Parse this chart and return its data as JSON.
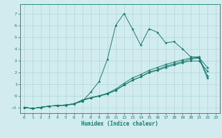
{
  "background_color": "#d0ecee",
  "grid_color": "#b8d8da",
  "line_color": "#1a7a6e",
  "xlabel": "Humidex (Indice chaleur)",
  "xlim": [
    -0.5,
    23.5
  ],
  "ylim": [
    -1.5,
    7.8
  ],
  "yticks": [
    -1,
    0,
    1,
    2,
    3,
    4,
    5,
    6,
    7
  ],
  "xticks": [
    0,
    1,
    2,
    3,
    4,
    5,
    6,
    7,
    8,
    9,
    10,
    11,
    12,
    13,
    14,
    15,
    16,
    17,
    18,
    19,
    20,
    21,
    22,
    23
  ],
  "lines": [
    {
      "x": [
        0,
        1,
        2,
        3,
        4,
        5,
        6,
        7,
        8,
        9,
        10,
        11,
        12,
        13,
        14,
        15,
        16,
        17,
        18,
        19,
        20,
        21,
        22
      ],
      "y": [
        -1,
        -1.1,
        -1,
        -0.9,
        -0.85,
        -0.85,
        -0.7,
        -0.5,
        0.3,
        1.2,
        3.1,
        6.0,
        7.0,
        5.7,
        4.3,
        5.7,
        5.4,
        4.5,
        4.6,
        4.0,
        3.3,
        3.3,
        1.7
      ]
    },
    {
      "x": [
        0,
        1,
        2,
        3,
        4,
        5,
        6,
        7,
        8,
        9,
        10,
        11,
        12,
        13,
        14,
        15,
        16,
        17,
        18,
        19,
        20,
        21,
        22
      ],
      "y": [
        -1,
        -1.1,
        -1,
        -0.9,
        -0.85,
        -0.82,
        -0.72,
        -0.42,
        -0.2,
        -0.05,
        0.15,
        0.45,
        0.9,
        1.3,
        1.6,
        2.0,
        2.2,
        2.5,
        2.7,
        2.9,
        3.1,
        3.2,
        1.5
      ]
    },
    {
      "x": [
        0,
        1,
        2,
        3,
        4,
        5,
        6,
        7,
        8,
        9,
        10,
        11,
        12,
        13,
        14,
        15,
        16,
        17,
        18,
        19,
        20,
        21,
        22
      ],
      "y": [
        -1,
        -1.1,
        -1,
        -0.9,
        -0.85,
        -0.8,
        -0.7,
        -0.38,
        -0.18,
        -0.02,
        0.2,
        0.55,
        1.05,
        1.5,
        1.8,
        2.15,
        2.4,
        2.65,
        2.85,
        3.05,
        3.2,
        3.25,
        2.4
      ]
    },
    {
      "x": [
        0,
        1,
        2,
        3,
        4,
        5,
        6,
        7,
        8,
        9,
        10,
        11,
        12,
        13,
        14,
        15,
        16,
        17,
        18,
        19,
        20,
        21,
        22
      ],
      "y": [
        -1,
        -1.1,
        -1,
        -0.9,
        -0.85,
        -0.8,
        -0.7,
        -0.38,
        -0.18,
        -0.02,
        0.15,
        0.45,
        0.9,
        1.3,
        1.6,
        1.95,
        2.15,
        2.4,
        2.6,
        2.8,
        2.95,
        2.95,
        2.1
      ]
    }
  ]
}
